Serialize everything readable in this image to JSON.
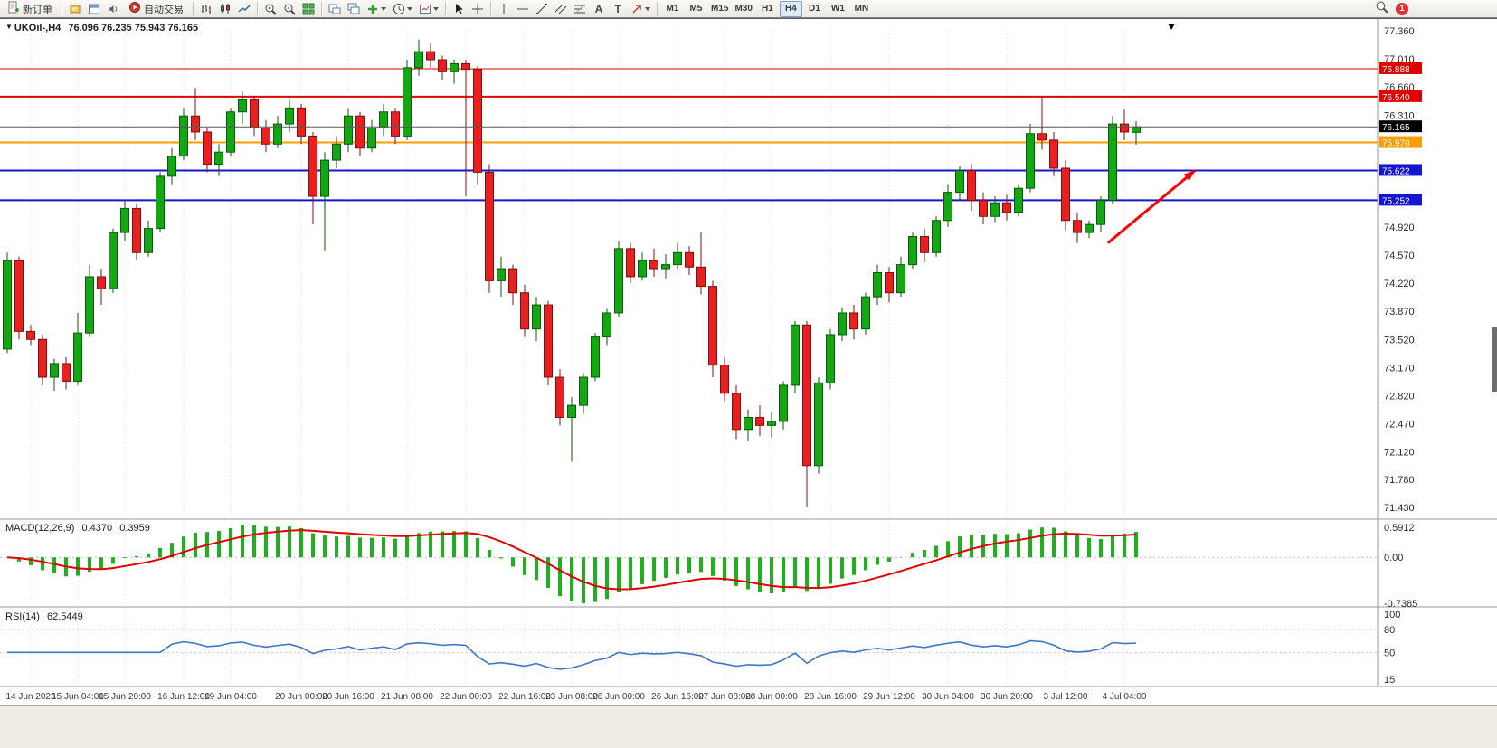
{
  "toolbar": {
    "new_order_label": "新订单",
    "autotrading_label": "自动交易",
    "timeframes": [
      "M1",
      "M5",
      "M15",
      "M30",
      "H1",
      "H4",
      "D1",
      "W1",
      "MN"
    ],
    "active_timeframe": "H4",
    "notification_badge": "1"
  },
  "chart_data": [
    {
      "type": "candlestick",
      "symbol": "UKOil-",
      "timeframe": "H4",
      "title": "UKOil-,H4",
      "ohlc_text": "76.096 76.235 75.943 76.165",
      "price_max": 77.36,
      "price_min": 71.43,
      "current_price": 76.165,
      "current_label": "76.165",
      "shift_marker_index": 99,
      "colors": {
        "up": "#13A813",
        "up_border": "#0A5A0A",
        "down": "#E82020",
        "down_border": "#801010",
        "grid": "#D9D9D9",
        "current_line": "#555555"
      },
      "y_ticks": [
        "77.360",
        "77.010",
        "76.660",
        "76.310",
        "75.960",
        "75.610",
        "75.260",
        "74.920",
        "74.570",
        "74.220",
        "73.870",
        "73.520",
        "73.170",
        "72.820",
        "72.470",
        "72.120",
        "71.780",
        "71.430"
      ],
      "levels": [
        {
          "price": 76.888,
          "label": "76.888",
          "color": "#E00000",
          "width": 1
        },
        {
          "price": 76.54,
          "label": "76.540",
          "color": "#E00000",
          "width": 2
        },
        {
          "price": 75.97,
          "label": "75.970",
          "color": "#FF9C00",
          "width": 2
        },
        {
          "price": 75.622,
          "label": "75.622",
          "color": "#1414D2",
          "width": 2
        },
        {
          "price": 75.252,
          "label": "75.252",
          "color": "#1414D2",
          "width": 2
        }
      ],
      "arrow": {
        "from_index": 93.6,
        "from_price": 74.72,
        "to_index": 101,
        "to_price": 75.62,
        "color": "#FF0000"
      },
      "x_labels": [
        {
          "index": 2,
          "label": "14 Jun 2023"
        },
        {
          "index": 6,
          "label": "15 Jun 04:00"
        },
        {
          "index": 10,
          "label": "15 Jun 20:00"
        },
        {
          "index": 15,
          "label": "16 Jun 12:00"
        },
        {
          "index": 19,
          "label": "19 Jun 04:00"
        },
        {
          "index": 25,
          "label": "20 Jun 00:00"
        },
        {
          "index": 29,
          "label": "20 Jun 16:00"
        },
        {
          "index": 34,
          "label": "21 Jun 08:00"
        },
        {
          "index": 39,
          "label": "22 Jun 00:00"
        },
        {
          "index": 44,
          "label": "22 Jun 16:00"
        },
        {
          "index": 48,
          "label": "23 Jun 08:00"
        },
        {
          "index": 52,
          "label": "26 Jun 00:00"
        },
        {
          "index": 57,
          "label": "26 Jun 16:00"
        },
        {
          "index": 61,
          "label": "27 Jun 08:00"
        },
        {
          "index": 65,
          "label": "28 Jun 00:00"
        },
        {
          "index": 70,
          "label": "28 Jun 16:00"
        },
        {
          "index": 75,
          "label": "29 Jun 12:00"
        },
        {
          "index": 80,
          "label": "30 Jun 04:00"
        },
        {
          "index": 85,
          "label": "30 Jun 20:00"
        },
        {
          "index": 90,
          "label": "3 Jul 12:00"
        },
        {
          "index": 95,
          "label": "4 Jul 04:00"
        }
      ],
      "ohlc": [
        [
          73.4,
          74.6,
          73.35,
          74.5
        ],
        [
          74.5,
          74.55,
          73.52,
          73.62
        ],
        [
          73.62,
          73.7,
          73.45,
          73.52
        ],
        [
          73.52,
          73.58,
          72.95,
          73.05
        ],
        [
          73.05,
          73.28,
          72.88,
          73.22
        ],
        [
          73.22,
          73.3,
          72.9,
          73.0
        ],
        [
          73.0,
          73.85,
          72.95,
          73.6
        ],
        [
          73.6,
          74.45,
          73.55,
          74.3
        ],
        [
          74.3,
          74.4,
          73.95,
          74.15
        ],
        [
          74.15,
          74.9,
          74.1,
          74.85
        ],
        [
          74.85,
          75.25,
          74.75,
          75.15
        ],
        [
          75.15,
          75.2,
          74.5,
          74.6
        ],
        [
          74.6,
          75.0,
          74.55,
          74.9
        ],
        [
          74.9,
          75.6,
          74.85,
          75.55
        ],
        [
          75.55,
          75.9,
          75.45,
          75.8
        ],
        [
          75.8,
          76.4,
          75.75,
          76.3
        ],
        [
          76.3,
          76.65,
          76.0,
          76.1
        ],
        [
          76.1,
          76.15,
          75.6,
          75.7
        ],
        [
          75.7,
          75.95,
          75.55,
          75.85
        ],
        [
          75.85,
          76.4,
          75.8,
          76.35
        ],
        [
          76.35,
          76.6,
          76.2,
          76.5
        ],
        [
          76.5,
          76.55,
          76.05,
          76.15
        ],
        [
          76.15,
          76.25,
          75.85,
          75.95
        ],
        [
          75.95,
          76.3,
          75.9,
          76.2
        ],
        [
          76.2,
          76.5,
          76.1,
          76.4
        ],
        [
          76.4,
          76.45,
          75.95,
          76.05
        ],
        [
          76.05,
          76.1,
          74.95,
          75.3
        ],
        [
          75.3,
          75.85,
          74.62,
          75.75
        ],
        [
          75.75,
          76.05,
          75.65,
          75.95
        ],
        [
          75.95,
          76.4,
          75.85,
          76.3
        ],
        [
          76.3,
          76.35,
          75.8,
          75.9
        ],
        [
          75.9,
          76.25,
          75.85,
          76.15
        ],
        [
          76.15,
          76.45,
          76.05,
          76.35
        ],
        [
          76.35,
          76.4,
          75.95,
          76.05
        ],
        [
          76.05,
          77.0,
          76.0,
          76.9
        ],
        [
          76.9,
          77.25,
          76.8,
          77.1
        ],
        [
          77.1,
          77.2,
          76.9,
          77.0
        ],
        [
          77.0,
          77.05,
          76.75,
          76.85
        ],
        [
          76.85,
          77.0,
          76.7,
          76.95
        ],
        [
          76.95,
          77.0,
          75.3,
          76.88
        ],
        [
          76.88,
          76.92,
          75.45,
          75.6
        ],
        [
          75.6,
          75.7,
          74.1,
          74.25
        ],
        [
          74.25,
          74.55,
          74.05,
          74.4
        ],
        [
          74.4,
          74.45,
          73.95,
          74.1
        ],
        [
          74.1,
          74.2,
          73.55,
          73.65
        ],
        [
          73.65,
          74.05,
          73.5,
          73.95
        ],
        [
          73.95,
          74.0,
          72.95,
          73.05
        ],
        [
          73.05,
          73.15,
          72.45,
          72.55
        ],
        [
          72.55,
          72.8,
          72.0,
          72.7
        ],
        [
          72.7,
          73.1,
          72.6,
          73.05
        ],
        [
          73.05,
          73.6,
          73.0,
          73.55
        ],
        [
          73.55,
          73.9,
          73.45,
          73.85
        ],
        [
          73.85,
          74.75,
          73.8,
          74.65
        ],
        [
          74.65,
          74.72,
          74.22,
          74.3
        ],
        [
          74.3,
          74.6,
          74.25,
          74.5
        ],
        [
          74.5,
          74.65,
          74.3,
          74.4
        ],
        [
          74.4,
          74.58,
          74.28,
          74.45
        ],
        [
          74.45,
          74.72,
          74.4,
          74.6
        ],
        [
          74.6,
          74.68,
          74.32,
          74.42
        ],
        [
          74.42,
          74.85,
          74.08,
          74.18
        ],
        [
          74.18,
          74.25,
          73.05,
          73.2
        ],
        [
          73.2,
          73.3,
          72.75,
          72.85
        ],
        [
          72.85,
          72.95,
          72.28,
          72.4
        ],
        [
          72.4,
          72.65,
          72.25,
          72.55
        ],
        [
          72.55,
          72.7,
          72.32,
          72.45
        ],
        [
          72.45,
          72.62,
          72.3,
          72.5
        ],
        [
          72.5,
          73.0,
          72.4,
          72.95
        ],
        [
          72.95,
          73.75,
          72.85,
          73.7
        ],
        [
          73.7,
          73.75,
          71.43,
          71.95
        ],
        [
          71.95,
          73.05,
          71.85,
          72.98
        ],
        [
          72.98,
          73.65,
          72.9,
          73.58
        ],
        [
          73.58,
          73.92,
          73.5,
          73.85
        ],
        [
          73.85,
          73.95,
          73.52,
          73.65
        ],
        [
          73.65,
          74.1,
          73.58,
          74.05
        ],
        [
          74.05,
          74.45,
          73.95,
          74.35
        ],
        [
          74.35,
          74.42,
          73.98,
          74.1
        ],
        [
          74.1,
          74.55,
          74.05,
          74.45
        ],
        [
          74.45,
          74.85,
          74.4,
          74.8
        ],
        [
          74.8,
          74.9,
          74.48,
          74.6
        ],
        [
          74.6,
          75.05,
          74.55,
          75.0
        ],
        [
          75.0,
          75.45,
          74.92,
          75.35
        ],
        [
          75.35,
          75.68,
          75.25,
          75.62
        ],
        [
          75.62,
          75.7,
          75.12,
          75.25
        ],
        [
          75.25,
          75.35,
          74.95,
          75.05
        ],
        [
          75.05,
          75.3,
          74.98,
          75.22
        ],
        [
          75.22,
          75.32,
          75.0,
          75.1
        ],
        [
          75.1,
          75.45,
          75.05,
          75.4
        ],
        [
          75.4,
          76.2,
          75.35,
          76.08
        ],
        [
          76.08,
          76.54,
          75.88,
          76.0
        ],
        [
          76.0,
          76.1,
          75.55,
          75.65
        ],
        [
          75.65,
          75.75,
          74.88,
          75.0
        ],
        [
          75.0,
          75.1,
          74.72,
          74.85
        ],
        [
          74.85,
          75.0,
          74.78,
          74.95
        ],
        [
          74.95,
          75.3,
          74.86,
          75.25
        ],
        [
          75.25,
          76.3,
          75.2,
          76.2
        ],
        [
          76.2,
          76.38,
          76.0,
          76.1
        ],
        [
          76.096,
          76.235,
          75.943,
          76.165
        ]
      ]
    },
    {
      "type": "macd",
      "label": "MACD(12,26,9)",
      "main_value": "0.4370",
      "signal_value": "0.3959",
      "params": [
        12,
        26,
        9
      ],
      "scale_max_label": "0.5912",
      "scale_zero_label": "0.00",
      "scale_min_label": "-0.7385",
      "histogram_color": "#1CB21C",
      "signal_color": "#E00000",
      "derived_from_candles": true
    },
    {
      "type": "rsi",
      "label": "RSI(14)",
      "value": "62.5449",
      "period": 14,
      "scale_labels": [
        "100",
        "80",
        "50",
        "15"
      ],
      "level_lines": [
        80,
        50
      ],
      "range_min": 15,
      "range_max": 100,
      "line_color": "#3E76C6",
      "derived_from_candles": true
    }
  ]
}
